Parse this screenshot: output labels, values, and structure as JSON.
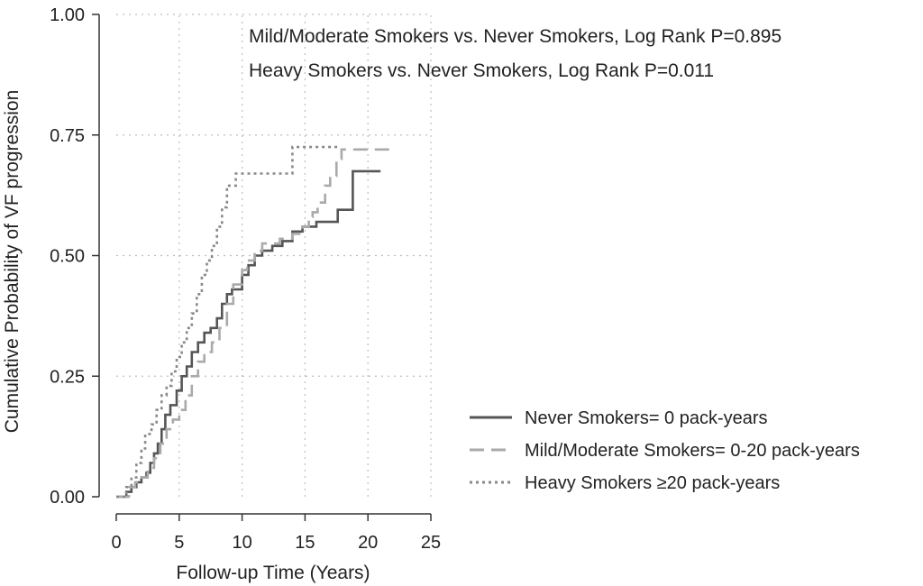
{
  "chart_data": {
    "type": "line",
    "title": "",
    "xlabel": "Follow-up Time (Years)",
    "ylabel": "Cumulative Probability of VF progression",
    "xlim": [
      0,
      25
    ],
    "ylim": [
      0,
      1
    ],
    "x_ticks": [
      0,
      5,
      10,
      15,
      20,
      25
    ],
    "x_tick_labels": [
      "0",
      "5",
      "10",
      "15",
      "20",
      "25"
    ],
    "y_ticks": [
      0,
      0.25,
      0.5,
      0.75,
      1
    ],
    "y_tick_labels": [
      "0.00",
      "0.25",
      "0.50",
      "0.75",
      "1.00"
    ],
    "grid": true,
    "legend_position": "right",
    "annotations": [
      "Mild/Moderate Smokers vs. Never Smokers, Log Rank P=0.895",
      "Heavy Smokers vs. Never Smokers, Log Rank P=0.011"
    ],
    "series": [
      {
        "name": "Never Smokers= 0 pack-years",
        "style": "solid",
        "color": "#555555",
        "points": [
          [
            0,
            0
          ],
          [
            0.8,
            0
          ],
          [
            0.8,
            0.01
          ],
          [
            1.2,
            0.01
          ],
          [
            1.2,
            0.02
          ],
          [
            1.6,
            0.02
          ],
          [
            1.6,
            0.03
          ],
          [
            2.0,
            0.03
          ],
          [
            2.0,
            0.04
          ],
          [
            2.4,
            0.04
          ],
          [
            2.4,
            0.05
          ],
          [
            2.7,
            0.05
          ],
          [
            2.7,
            0.07
          ],
          [
            3.0,
            0.07
          ],
          [
            3.0,
            0.09
          ],
          [
            3.3,
            0.09
          ],
          [
            3.3,
            0.11
          ],
          [
            3.6,
            0.11
          ],
          [
            3.6,
            0.14
          ],
          [
            3.9,
            0.14
          ],
          [
            3.9,
            0.17
          ],
          [
            4.3,
            0.17
          ],
          [
            4.3,
            0.19
          ],
          [
            4.8,
            0.19
          ],
          [
            4.8,
            0.22
          ],
          [
            5.2,
            0.22
          ],
          [
            5.2,
            0.25
          ],
          [
            5.6,
            0.25
          ],
          [
            5.6,
            0.27
          ],
          [
            6.0,
            0.27
          ],
          [
            6.0,
            0.3
          ],
          [
            6.5,
            0.3
          ],
          [
            6.5,
            0.32
          ],
          [
            7.0,
            0.32
          ],
          [
            7.0,
            0.34
          ],
          [
            7.5,
            0.34
          ],
          [
            7.5,
            0.35
          ],
          [
            8.0,
            0.35
          ],
          [
            8.0,
            0.37
          ],
          [
            8.4,
            0.37
          ],
          [
            8.4,
            0.4
          ],
          [
            8.8,
            0.4
          ],
          [
            8.8,
            0.42
          ],
          [
            9.2,
            0.42
          ],
          [
            9.2,
            0.43
          ],
          [
            10.0,
            0.43
          ],
          [
            10.0,
            0.46
          ],
          [
            10.5,
            0.46
          ],
          [
            10.5,
            0.48
          ],
          [
            11.0,
            0.48
          ],
          [
            11.0,
            0.5
          ],
          [
            11.6,
            0.5
          ],
          [
            11.6,
            0.51
          ],
          [
            12.4,
            0.51
          ],
          [
            12.4,
            0.52
          ],
          [
            13.2,
            0.52
          ],
          [
            13.2,
            0.53
          ],
          [
            14.0,
            0.53
          ],
          [
            14.0,
            0.55
          ],
          [
            14.8,
            0.55
          ],
          [
            14.8,
            0.56
          ],
          [
            15.9,
            0.56
          ],
          [
            15.9,
            0.57
          ],
          [
            17.6,
            0.57
          ],
          [
            17.6,
            0.595
          ],
          [
            18.8,
            0.595
          ],
          [
            18.8,
            0.675
          ],
          [
            21.0,
            0.675
          ]
        ]
      },
      {
        "name": "Mild/Moderate Smokers= 0-20 pack-years",
        "style": "dashed",
        "color": "#aaaaaa",
        "points": [
          [
            0,
            0
          ],
          [
            1.0,
            0
          ],
          [
            1.0,
            0.02
          ],
          [
            1.5,
            0.02
          ],
          [
            1.5,
            0.03
          ],
          [
            2.0,
            0.03
          ],
          [
            2.0,
            0.04
          ],
          [
            2.5,
            0.04
          ],
          [
            2.5,
            0.06
          ],
          [
            3.0,
            0.06
          ],
          [
            3.0,
            0.08
          ],
          [
            3.5,
            0.08
          ],
          [
            3.5,
            0.11
          ],
          [
            4.0,
            0.11
          ],
          [
            4.0,
            0.14
          ],
          [
            4.5,
            0.14
          ],
          [
            4.5,
            0.16
          ],
          [
            5.0,
            0.16
          ],
          [
            5.0,
            0.18
          ],
          [
            5.5,
            0.18
          ],
          [
            5.5,
            0.21
          ],
          [
            6.0,
            0.21
          ],
          [
            6.0,
            0.25
          ],
          [
            6.5,
            0.25
          ],
          [
            6.5,
            0.28
          ],
          [
            7.0,
            0.28
          ],
          [
            7.0,
            0.3
          ],
          [
            7.6,
            0.3
          ],
          [
            7.6,
            0.32
          ],
          [
            8.2,
            0.32
          ],
          [
            8.2,
            0.35
          ],
          [
            8.8,
            0.35
          ],
          [
            8.8,
            0.4
          ],
          [
            9.3,
            0.4
          ],
          [
            9.3,
            0.44
          ],
          [
            10.0,
            0.44
          ],
          [
            10.0,
            0.47
          ],
          [
            10.4,
            0.47
          ],
          [
            10.4,
            0.49
          ],
          [
            11.0,
            0.49
          ],
          [
            11.0,
            0.51
          ],
          [
            11.6,
            0.51
          ],
          [
            11.6,
            0.525
          ],
          [
            13.0,
            0.525
          ],
          [
            13.0,
            0.535
          ],
          [
            14.0,
            0.535
          ],
          [
            14.0,
            0.545
          ],
          [
            14.8,
            0.545
          ],
          [
            14.8,
            0.56
          ],
          [
            15.3,
            0.56
          ],
          [
            15.3,
            0.58
          ],
          [
            15.6,
            0.58
          ],
          [
            15.6,
            0.59
          ],
          [
            16.0,
            0.59
          ],
          [
            16.0,
            0.61
          ],
          [
            16.6,
            0.61
          ],
          [
            16.6,
            0.645
          ],
          [
            17.0,
            0.645
          ],
          [
            17.0,
            0.665
          ],
          [
            17.5,
            0.665
          ],
          [
            17.5,
            0.7
          ],
          [
            17.9,
            0.7
          ],
          [
            17.9,
            0.72
          ],
          [
            21.8,
            0.72
          ]
        ]
      },
      {
        "name": "Heavy Smokers ≥20 pack-years",
        "style": "dotted",
        "color": "#888888",
        "points": [
          [
            0,
            0
          ],
          [
            0.8,
            0
          ],
          [
            0.8,
            0.02
          ],
          [
            1.2,
            0.02
          ],
          [
            1.2,
            0.04
          ],
          [
            1.6,
            0.04
          ],
          [
            1.6,
            0.07
          ],
          [
            2.0,
            0.07
          ],
          [
            2.0,
            0.1
          ],
          [
            2.3,
            0.1
          ],
          [
            2.3,
            0.13
          ],
          [
            2.8,
            0.13
          ],
          [
            2.8,
            0.15
          ],
          [
            3.2,
            0.15
          ],
          [
            3.2,
            0.18
          ],
          [
            3.6,
            0.18
          ],
          [
            3.6,
            0.21
          ],
          [
            4.0,
            0.21
          ],
          [
            4.0,
            0.23
          ],
          [
            4.4,
            0.23
          ],
          [
            4.4,
            0.26
          ],
          [
            4.8,
            0.26
          ],
          [
            4.8,
            0.29
          ],
          [
            5.2,
            0.29
          ],
          [
            5.2,
            0.32
          ],
          [
            5.6,
            0.32
          ],
          [
            5.6,
            0.35
          ],
          [
            6.0,
            0.35
          ],
          [
            6.0,
            0.38
          ],
          [
            6.4,
            0.38
          ],
          [
            6.4,
            0.42
          ],
          [
            6.8,
            0.42
          ],
          [
            6.8,
            0.46
          ],
          [
            7.2,
            0.46
          ],
          [
            7.2,
            0.49
          ],
          [
            7.6,
            0.49
          ],
          [
            7.6,
            0.52
          ],
          [
            8.0,
            0.52
          ],
          [
            8.0,
            0.56
          ],
          [
            8.4,
            0.56
          ],
          [
            8.4,
            0.6
          ],
          [
            8.8,
            0.6
          ],
          [
            8.8,
            0.645
          ],
          [
            9.5,
            0.645
          ],
          [
            9.5,
            0.67
          ],
          [
            14.0,
            0.67
          ],
          [
            14.0,
            0.725
          ],
          [
            17.6,
            0.725
          ]
        ]
      }
    ]
  }
}
